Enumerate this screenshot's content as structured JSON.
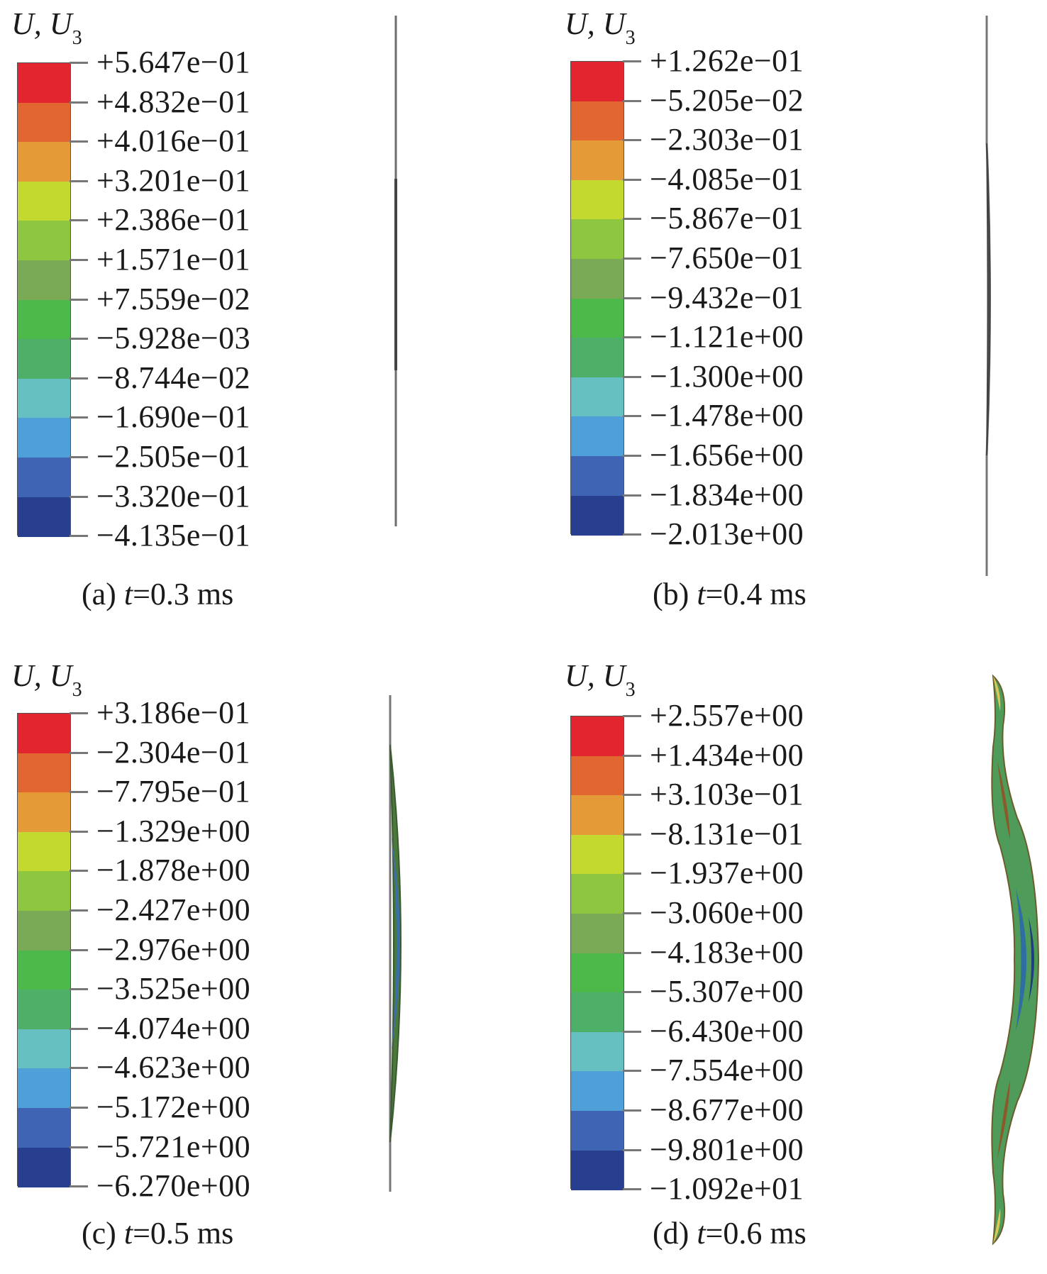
{
  "colors": [
    "#e32530",
    "#e2402a",
    "#e2662f",
    "#e49a37",
    "#c4d930",
    "#8ec73f",
    "#6fb648",
    "#7aaa55",
    "#4db94a",
    "#4eb068",
    "#5ec09a",
    "#66bfc0",
    "#4f9fd9",
    "#3f64b4",
    "#283e8f"
  ],
  "panels": [
    {
      "variable": "U, U",
      "subscript": "3",
      "caption_prefix": "(a) ",
      "caption_t": "t",
      "caption_suffix": "=0.3 ms",
      "ticks": [
        "+5.647e−01",
        "+4.832e−01",
        "+4.016e−01",
        "+3.201e−01",
        "+2.386e−01",
        "+1.571e−01",
        "+7.559e−02",
        "−5.928e−03",
        "−8.744e−02",
        "−1.690e−01",
        "−2.505e−01",
        "−3.320e−01",
        "−4.135e−01"
      ]
    },
    {
      "variable": "U, U",
      "subscript": "3",
      "caption_prefix": "(b) ",
      "caption_t": "t",
      "caption_suffix": "=0.4 ms",
      "ticks": [
        "+1.262e−01",
        "−5.205e−02",
        "−2.303e−01",
        "−4.085e−01",
        "−5.867e−01",
        "−7.650e−01",
        "−9.432e−01",
        "−1.121e+00",
        "−1.300e+00",
        "−1.478e+00",
        "−1.656e+00",
        "−1.834e+00",
        "−2.013e+00"
      ]
    },
    {
      "variable": "U, U",
      "subscript": "3",
      "caption_prefix": "(c) ",
      "caption_t": "t",
      "caption_suffix": "=0.5 ms",
      "ticks": [
        "+3.186e−01",
        "−2.304e−01",
        "−7.795e−01",
        "−1.329e+00",
        "−1.878e+00",
        "−2.427e+00",
        "−2.976e+00",
        "−3.525e+00",
        "−4.074e+00",
        "−4.623e+00",
        "−5.172e+00",
        "−5.721e+00",
        "−6.270e+00"
      ]
    },
    {
      "variable": "U, U",
      "subscript": "3",
      "caption_prefix": "(d) ",
      "caption_t": "t",
      "caption_suffix": "=0.6 ms",
      "ticks": [
        "+2.557e+00",
        "+1.434e+00",
        "+3.103e−01",
        "−8.131e−01",
        "−1.937e+00",
        "−3.060e+00",
        "−4.183e+00",
        "−5.307e+00",
        "−6.430e+00",
        "−7.554e+00",
        "−8.677e+00",
        "−9.801e+00",
        "−1.092e+01"
      ]
    }
  ]
}
